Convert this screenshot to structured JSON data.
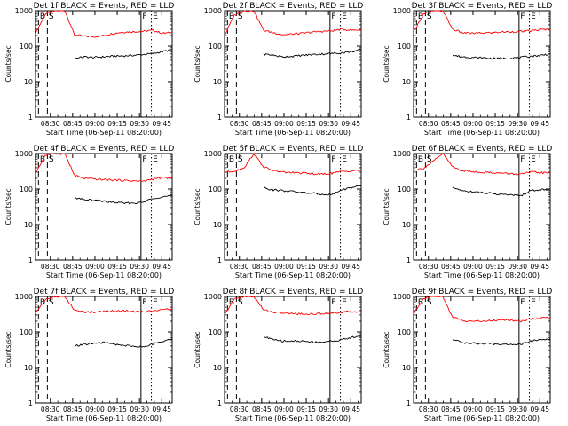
{
  "panels_meta": {
    "ylabel": "Counts/sec",
    "xlabel": "Start Time (06-Sep-11 08:20:00)",
    "y_ticks": [
      "1000",
      "100",
      "10",
      "1"
    ],
    "colors": {
      "events": "#000000",
      "lld": "#ff0000",
      "axis": "#000000"
    },
    "interval_markers": [
      "B",
      "S",
      "F",
      "E"
    ]
  },
  "chart_data": [
    {
      "type": "line",
      "title": "Det 1f BLACK = Events, RED = LLD",
      "xlabel": "Start Time (06-Sep-11 08:20:00)",
      "ylabel": "Counts/sec",
      "yscale": "log",
      "ylim": [
        1,
        1000
      ],
      "xlim": [
        "08:20",
        "09:52"
      ],
      "x_ticks": [
        "08:30",
        "08:45",
        "09:00",
        "09:15",
        "09:30",
        "09:45"
      ],
      "markers": {
        "B": "08:22",
        "S": "08:28",
        "F": "09:31",
        "E": "09:38"
      },
      "series": [
        {
          "name": "LLD",
          "color": "#ff0000",
          "values": [
            230,
            800,
            1000,
            1000,
            210,
            190,
            185,
            200,
            230,
            250,
            255,
            260,
            280,
            230,
            240
          ]
        },
        {
          "name": "Events",
          "color": "#000000",
          "values": [
            null,
            null,
            null,
            null,
            45,
            50,
            48,
            50,
            52,
            53,
            55,
            58,
            62,
            70,
            80
          ]
        }
      ]
    },
    {
      "type": "line",
      "title": "Det 2f BLACK = Events, RED = LLD",
      "xlabel": "Start Time (06-Sep-11 08:20:00)",
      "ylabel": "Counts/sec",
      "yscale": "log",
      "ylim": [
        1,
        1000
      ],
      "xlim": [
        "08:20",
        "09:52"
      ],
      "x_ticks": [
        "08:30",
        "08:45",
        "09:00",
        "09:15",
        "09:30",
        "09:45"
      ],
      "markers": {
        "B": "08:22",
        "S": "08:28",
        "F": "09:31",
        "E": "09:38"
      },
      "series": [
        {
          "name": "LLD",
          "color": "#ff0000",
          "values": [
            200,
            750,
            1000,
            1000,
            280,
            240,
            210,
            220,
            230,
            250,
            260,
            270,
            300,
            280,
            290
          ]
        },
        {
          "name": "Events",
          "color": "#000000",
          "values": [
            null,
            null,
            null,
            null,
            60,
            55,
            50,
            52,
            55,
            58,
            60,
            62,
            65,
            70,
            80
          ]
        }
      ]
    },
    {
      "type": "line",
      "title": "Det 3f BLACK = Events, RED = LLD",
      "xlabel": "Start Time (06-Sep-11 08:20:00)",
      "ylabel": "Counts/sec",
      "yscale": "log",
      "ylim": [
        1,
        1000
      ],
      "xlim": [
        "08:20",
        "09:52"
      ],
      "x_ticks": [
        "08:30",
        "08:45",
        "09:00",
        "09:15",
        "09:30",
        "09:45"
      ],
      "markers": {
        "B": "08:22",
        "S": "08:28",
        "F": "09:31",
        "E": "09:38"
      },
      "series": [
        {
          "name": "LLD",
          "color": "#ff0000",
          "values": [
            260,
            800,
            1000,
            1000,
            300,
            240,
            230,
            235,
            240,
            250,
            255,
            260,
            270,
            290,
            300
          ]
        },
        {
          "name": "Events",
          "color": "#000000",
          "values": [
            null,
            null,
            null,
            null,
            55,
            50,
            48,
            47,
            45,
            45,
            46,
            48,
            52,
            55,
            60
          ]
        }
      ]
    },
    {
      "type": "line",
      "title": "Det 4f BLACK = Events, RED = LLD",
      "xlabel": "Start Time (06-Sep-11 08:20:00)",
      "ylabel": "Counts/sec",
      "yscale": "log",
      "ylim": [
        1,
        1000
      ],
      "xlim": [
        "08:20",
        "09:52"
      ],
      "x_ticks": [
        "08:30",
        "08:45",
        "09:00",
        "09:15",
        "09:30",
        "09:45"
      ],
      "markers": {
        "B": "08:22",
        "S": "08:28",
        "F": "09:31",
        "E": "09:38"
      },
      "series": [
        {
          "name": "LLD",
          "color": "#ff0000",
          "values": [
            280,
            900,
            1000,
            1000,
            240,
            200,
            190,
            185,
            180,
            175,
            170,
            165,
            190,
            210,
            200
          ]
        },
        {
          "name": "Events",
          "color": "#000000",
          "values": [
            null,
            null,
            null,
            null,
            55,
            50,
            48,
            45,
            42,
            40,
            40,
            42,
            55,
            60,
            65
          ]
        }
      ]
    },
    {
      "type": "line",
      "title": "Det 5f BLACK = Events, RED = LLD",
      "xlabel": "Start Time (06-Sep-11 08:20:00)",
      "ylabel": "Counts/sec",
      "yscale": "log",
      "ylim": [
        1,
        1000
      ],
      "xlim": [
        "08:20",
        "09:52"
      ],
      "x_ticks": [
        "08:30",
        "08:45",
        "09:00",
        "09:15",
        "09:30",
        "09:45"
      ],
      "markers": {
        "B": "08:22",
        "S": "08:28",
        "F": "09:31",
        "E": "09:38"
      },
      "series": [
        {
          "name": "LLD",
          "color": "#ff0000",
          "values": [
            300,
            320,
            400,
            1000,
            420,
            330,
            300,
            290,
            280,
            270,
            260,
            280,
            310,
            330,
            340
          ]
        },
        {
          "name": "Events",
          "color": "#000000",
          "values": [
            null,
            null,
            null,
            null,
            110,
            95,
            90,
            85,
            80,
            75,
            72,
            70,
            95,
            110,
            120
          ]
        }
      ]
    },
    {
      "type": "line",
      "title": "Det 6f BLACK = Events, RED = LLD",
      "xlabel": "Start Time (06-Sep-11 08:20:00)",
      "ylabel": "Counts/sec",
      "yscale": "log",
      "ylim": [
        1,
        1000
      ],
      "xlim": [
        "08:20",
        "09:52"
      ],
      "x_ticks": [
        "08:30",
        "08:45",
        "09:00",
        "09:15",
        "09:30",
        "09:45"
      ],
      "markers": {
        "B": "08:22",
        "S": "08:28",
        "F": "09:31",
        "E": "09:38"
      },
      "series": [
        {
          "name": "LLD",
          "color": "#ff0000",
          "values": [
            350,
            380,
            600,
            1000,
            420,
            330,
            310,
            300,
            290,
            280,
            270,
            260,
            300,
            290,
            280
          ]
        },
        {
          "name": "Events",
          "color": "#000000",
          "values": [
            null,
            null,
            null,
            null,
            110,
            90,
            85,
            80,
            75,
            70,
            68,
            65,
            90,
            95,
            100
          ]
        }
      ]
    },
    {
      "type": "line",
      "title": "Det 7f BLACK = Events, RED = LLD",
      "xlabel": "Start Time (06-Sep-11 08:20:00)",
      "ylabel": "Counts/sec",
      "yscale": "log",
      "ylim": [
        1,
        1000
      ],
      "xlim": [
        "08:20",
        "09:52"
      ],
      "x_ticks": [
        "08:30",
        "08:45",
        "09:00",
        "09:15",
        "09:30",
        "09:45"
      ],
      "markers": {
        "B": "08:22",
        "S": "08:28",
        "F": "09:31",
        "E": "09:38"
      },
      "series": [
        {
          "name": "LLD",
          "color": "#ff0000",
          "values": [
            350,
            800,
            1000,
            1000,
            400,
            370,
            360,
            380,
            390,
            400,
            380,
            370,
            400,
            420,
            430
          ]
        },
        {
          "name": "Events",
          "color": "#000000",
          "values": [
            null,
            null,
            null,
            null,
            40,
            45,
            48,
            50,
            45,
            42,
            40,
            38,
            45,
            55,
            65
          ]
        }
      ]
    },
    {
      "type": "line",
      "title": "Det 8f BLACK = Events, RED = LLD",
      "xlabel": "Start Time (06-Sep-11 08:20:00)",
      "ylabel": "Counts/sec",
      "yscale": "log",
      "ylim": [
        1,
        1000
      ],
      "xlim": [
        "08:20",
        "09:52"
      ],
      "x_ticks": [
        "08:30",
        "08:45",
        "09:00",
        "09:15",
        "09:30",
        "09:45"
      ],
      "markers": {
        "B": "08:22",
        "S": "08:28",
        "F": "09:31",
        "E": "09:38"
      },
      "series": [
        {
          "name": "LLD",
          "color": "#ff0000",
          "values": [
            300,
            850,
            1000,
            1000,
            420,
            360,
            340,
            330,
            320,
            320,
            330,
            340,
            360,
            370,
            380
          ]
        },
        {
          "name": "Events",
          "color": "#000000",
          "values": [
            null,
            null,
            null,
            null,
            75,
            60,
            55,
            55,
            55,
            52,
            52,
            55,
            60,
            70,
            75
          ]
        }
      ]
    },
    {
      "type": "line",
      "title": "Det 9f BLACK = Events, RED = LLD",
      "xlabel": "Start Time (06-Sep-11 08:20:00)",
      "ylabel": "Counts/sec",
      "yscale": "log",
      "ylim": [
        1,
        1000
      ],
      "xlim": [
        "08:20",
        "09:52"
      ],
      "x_ticks": [
        "08:30",
        "08:45",
        "09:00",
        "09:15",
        "09:30",
        "09:45"
      ],
      "markers": {
        "B": "08:22",
        "S": "08:28",
        "F": "09:31",
        "E": "09:38"
      },
      "series": [
        {
          "name": "LLD",
          "color": "#ff0000",
          "values": [
            320,
            900,
            1000,
            1000,
            260,
            210,
            200,
            200,
            210,
            220,
            210,
            200,
            230,
            250,
            260
          ]
        },
        {
          "name": "Events",
          "color": "#000000",
          "values": [
            null,
            null,
            null,
            null,
            60,
            50,
            48,
            47,
            46,
            45,
            44,
            45,
            55,
            60,
            65
          ]
        }
      ]
    }
  ]
}
